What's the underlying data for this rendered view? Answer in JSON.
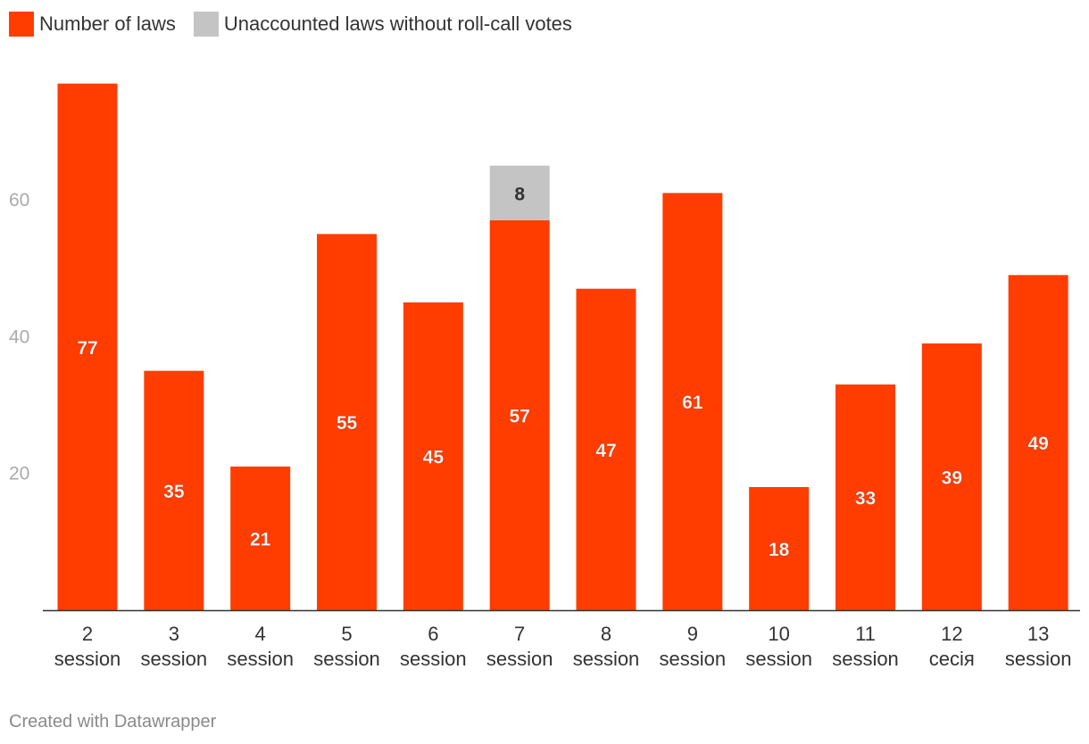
{
  "legend": [
    {
      "label": "Number of laws",
      "color": "#ff3d00"
    },
    {
      "label": "Unaccounted laws without roll-call votes",
      "color": "#c4c4c4"
    }
  ],
  "footer": "Created with Datawrapper",
  "chart_data": {
    "type": "bar",
    "stacked": true,
    "categories": [
      {
        "line1": "2",
        "line2": "session"
      },
      {
        "line1": "3",
        "line2": "session"
      },
      {
        "line1": "4",
        "line2": "session"
      },
      {
        "line1": "5",
        "line2": "session"
      },
      {
        "line1": "6",
        "line2": "session"
      },
      {
        "line1": "7",
        "line2": "session"
      },
      {
        "line1": "8",
        "line2": "session"
      },
      {
        "line1": "9",
        "line2": "session"
      },
      {
        "line1": "10",
        "line2": "session"
      },
      {
        "line1": "11",
        "line2": "session"
      },
      {
        "line1": "12",
        "line2": "сесія"
      },
      {
        "line1": "13",
        "line2": "session"
      }
    ],
    "series": [
      {
        "name": "Number of laws",
        "color": "#ff3d00",
        "values": [
          77,
          35,
          21,
          55,
          45,
          57,
          47,
          61,
          18,
          33,
          39,
          49
        ]
      },
      {
        "name": "Unaccounted laws without roll-call votes",
        "color": "#c4c4c4",
        "values": [
          0,
          0,
          0,
          0,
          0,
          8,
          0,
          0,
          0,
          0,
          0,
          0
        ]
      }
    ],
    "yticks": [
      20,
      40,
      60
    ],
    "ylim": [
      0,
      78
    ],
    "grid": false,
    "legend_position": "top-left"
  }
}
